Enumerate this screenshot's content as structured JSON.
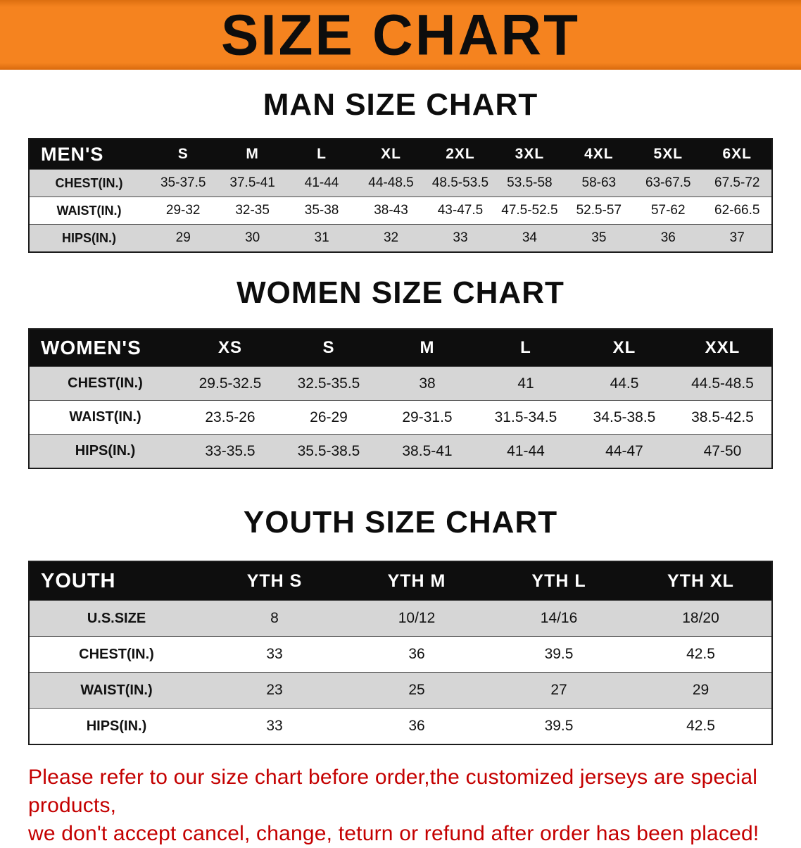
{
  "banner": {
    "title": "SIZE CHART",
    "bg_color": "#f5831f",
    "text_color": "#0d0d0d"
  },
  "sections": [
    {
      "heading": "MAN SIZE CHART",
      "table": {
        "header": [
          "MEN'S",
          "S",
          "M",
          "L",
          "XL",
          "2XL",
          "3XL",
          "4XL",
          "5XL",
          "6XL"
        ],
        "rows": [
          [
            "CHEST(IN.)",
            "35-37.5",
            "37.5-41",
            "41-44",
            "44-48.5",
            "48.5-53.5",
            "53.5-58",
            "58-63",
            "63-67.5",
            "67.5-72"
          ],
          [
            "WAIST(IN.)",
            "29-32",
            "32-35",
            "35-38",
            "38-43",
            "43-47.5",
            "47.5-52.5",
            "52.5-57",
            "57-62",
            "62-66.5"
          ],
          [
            "HIPS(IN.)",
            "29",
            "30",
            "31",
            "32",
            "33",
            "34",
            "35",
            "36",
            "37"
          ]
        ]
      }
    },
    {
      "heading": "WOMEN SIZE CHART",
      "table": {
        "header": [
          "WOMEN'S",
          "XS",
          "S",
          "M",
          "L",
          "XL",
          "XXL"
        ],
        "rows": [
          [
            "CHEST(IN.)",
            "29.5-32.5",
            "32.5-35.5",
            "38",
            "41",
            "44.5",
            "44.5-48.5"
          ],
          [
            "WAIST(IN.)",
            "23.5-26",
            "26-29",
            "29-31.5",
            "31.5-34.5",
            "34.5-38.5",
            "38.5-42.5"
          ],
          [
            "HIPS(IN.)",
            "33-35.5",
            "35.5-38.5",
            "38.5-41",
            "41-44",
            "44-47",
            "47-50"
          ]
        ]
      }
    },
    {
      "heading": "YOUTH SIZE CHART",
      "table": {
        "header": [
          "YOUTH",
          "YTH S",
          "YTH M",
          "YTH L",
          "YTH XL"
        ],
        "rows": [
          [
            "U.S.SIZE",
            "8",
            "10/12",
            "14/16",
            "18/20"
          ],
          [
            "CHEST(IN.)",
            "33",
            "36",
            "39.5",
            "42.5"
          ],
          [
            "WAIST(IN.)",
            "23",
            "25",
            "27",
            "29"
          ],
          [
            "HIPS(IN.)",
            "33",
            "36",
            "39.5",
            "42.5"
          ]
        ]
      }
    }
  ],
  "disclaimer": {
    "line1": "Please refer to our size chart before order,the customized jerseys are special products,",
    "line2": "we don't accept cancel, change, teturn or refund after order has been placed!",
    "color": "#c40000"
  }
}
